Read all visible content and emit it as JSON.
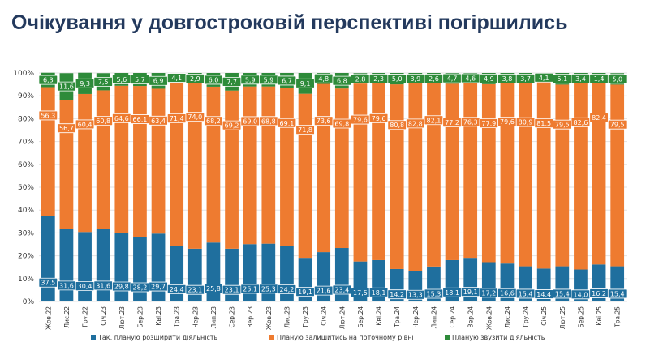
{
  "page": {
    "title": "Очікування у довгостроковій перспективі погіршились"
  },
  "chart_data": {
    "type": "bar",
    "stacked": true,
    "ylim": [
      0,
      100
    ],
    "yticks": [
      "0%",
      "10%",
      "20%",
      "30%",
      "40%",
      "50%",
      "60%",
      "70%",
      "80%",
      "90%",
      "100%"
    ],
    "grid": true,
    "legend_position": "bottom",
    "categories": [
      "Жов.22",
      "Лис.22",
      "Гру.22",
      "Січ.23",
      "Лют.23",
      "Бер.23",
      "Кві.23",
      "Тра.23",
      "Чер.23",
      "Лип.23",
      "Сер.23",
      "Вер.23",
      "Жов.23",
      "Лис.23",
      "Гру.23",
      "Січ.24",
      "Лют.24",
      "Бер.24",
      "Кві.24",
      "Тра.24",
      "Чер.24",
      "Лип.24",
      "Сер.24",
      "Вер.24",
      "Жов.24",
      "Лис.24",
      "Гру.24",
      "Січ.25",
      "Лют.25",
      "Бер.25",
      "Кві.25",
      "Тра.25"
    ],
    "series": [
      {
        "name": "Так, планую розширити діяльність",
        "color": "#1f6f9e",
        "values": [
          37.5,
          31.6,
          30.4,
          31.6,
          29.8,
          28.2,
          29.7,
          24.4,
          23.1,
          25.8,
          23.1,
          25.1,
          25.3,
          24.2,
          19.1,
          21.6,
          23.4,
          17.5,
          18.1,
          14.2,
          13.3,
          15.3,
          18.1,
          19.1,
          17.2,
          16.6,
          15.4,
          14.4,
          15.4,
          14.0,
          16.2,
          15.4
        ]
      },
      {
        "name": "Планую залишитись на поточному рівні",
        "color": "#ee7b30",
        "values": [
          56.3,
          56.7,
          60.4,
          60.8,
          64.6,
          66.1,
          63.4,
          71.4,
          74.0,
          68.2,
          69.2,
          69.0,
          68.8,
          69.1,
          71.8,
          73.6,
          69.8,
          79.6,
          79.6,
          80.8,
          82.8,
          82.1,
          77.2,
          76.3,
          77.9,
          79.6,
          80.9,
          81.5,
          79.5,
          82.6,
          82.4,
          79.5
        ]
      },
      {
        "name": "Планую звузити діяльність",
        "color": "#2e8b3a",
        "values": [
          6.3,
          11.6,
          9.3,
          7.5,
          5.6,
          5.7,
          6.9,
          4.1,
          2.9,
          6.0,
          7.7,
          5.9,
          5.9,
          6.7,
          9.1,
          4.8,
          6.8,
          2.8,
          2.3,
          5.0,
          3.9,
          2.6,
          4.7,
          4.6,
          4.9,
          3.8,
          3.7,
          4.1,
          5.1,
          3.4,
          1.4,
          5.0
        ]
      }
    ],
    "data_labels": [
      [
        "37,5",
        "31,6",
        "30,4",
        "31,6",
        "29,8",
        "28,2",
        "29,7",
        "24,4",
        "23,1",
        "25,8",
        "23,1",
        "25,1",
        "25,3",
        "24,2",
        "19,1",
        "21,6",
        "23,4",
        "17,5",
        "18,1",
        "14,2",
        "13,3",
        "15,3",
        "18,1",
        "19,1",
        "17,2",
        "16,6",
        "15,4",
        "14,4",
        "15,4",
        "14,0",
        "16,2",
        "15,4"
      ],
      [
        "56,3",
        "56,7",
        "60,4",
        "60,8",
        "64,6",
        "66,1",
        "63,4",
        "71,4",
        "74,0",
        "68,2",
        "69,2",
        "69,0",
        "68,8",
        "69,1",
        "71,8",
        "73,6",
        "69,8",
        "79,6",
        "79,6",
        "80,8",
        "82,8",
        "82,1",
        "77,2",
        "76,3",
        "77,9",
        "79,6",
        "80,9",
        "81,5",
        "79,5",
        "82,6",
        "82,4",
        "79,5"
      ],
      [
        "6,3",
        "11,6",
        "9,3",
        "7,5",
        "5,6",
        "5,7",
        "6,9",
        "4,1",
        "2,9",
        "6,0",
        "7,7",
        "5,9",
        "5,9",
        "6,7",
        "9,1",
        "4,8",
        "6,8",
        "2,8",
        "2,3",
        "5,0",
        "3,9",
        "2,6",
        "4,7",
        "4,6",
        "4,9",
        "3,8",
        "3,7",
        "4,1",
        "5,1",
        "3,4",
        "1,4",
        "5,0"
      ]
    ]
  }
}
